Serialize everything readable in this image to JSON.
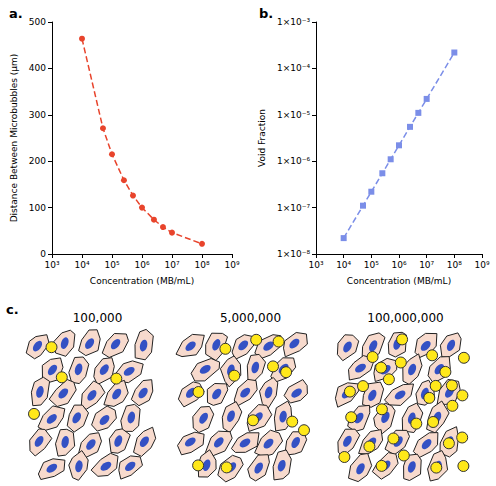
{
  "chart_data": [
    {
      "type": "line",
      "x_label": "Concentration (MB/mL)",
      "y_label": "Distance Between Microbubbles (µm)",
      "x": [
        10000,
        50000,
        100000,
        250000,
        500000,
        1000000,
        2500000,
        5000000,
        10000000,
        100000000
      ],
      "values": [
        464,
        271,
        215,
        159,
        126,
        100,
        74,
        58,
        46,
        22
      ],
      "xlim": [
        1000,
        1000000000
      ],
      "xticks": [
        {
          "value": 1000,
          "label": "10³"
        },
        {
          "value": 10000,
          "label": "10⁴"
        },
        {
          "value": 100000,
          "label": "10⁵"
        },
        {
          "value": 1000000,
          "label": "10⁶"
        },
        {
          "value": 10000000,
          "label": "10⁷"
        },
        {
          "value": 100000000,
          "label": "10⁸"
        },
        {
          "value": 1000000000,
          "label": "10⁹"
        }
      ],
      "ylim": [
        0,
        500
      ],
      "yticks": [
        0,
        100,
        200,
        300,
        400,
        500
      ],
      "log": "x",
      "grid": false,
      "color": "#e8442c",
      "marker": "circle",
      "line_style": "dashed"
    },
    {
      "type": "line",
      "x_label": "Concentration (MB/mL)",
      "y_label": "Void Fraction",
      "x": [
        10000,
        50000,
        100000,
        250000,
        500000,
        1000000,
        2500000,
        5000000,
        10000000,
        100000000
      ],
      "values": [
        2.2e-08,
        1.1e-07,
        2.2e-07,
        5.5e-07,
        1.1e-06,
        2.2e-06,
        5.5e-06,
        1.1e-05,
        2.2e-05,
        0.00022
      ],
      "xlim": [
        1000,
        1000000000
      ],
      "xticks": [
        {
          "value": 1000,
          "label": "10³"
        },
        {
          "value": 10000,
          "label": "10⁴"
        },
        {
          "value": 100000,
          "label": "10⁵"
        },
        {
          "value": 1000000,
          "label": "10⁶"
        },
        {
          "value": 10000000,
          "label": "10⁷"
        },
        {
          "value": 100000000,
          "label": "10⁸"
        },
        {
          "value": 1000000000,
          "label": "10⁹"
        }
      ],
      "ylim": [
        1e-08,
        0.001
      ],
      "yticks": [
        {
          "value": 1e-08,
          "label": "1×10⁻⁸"
        },
        {
          "value": 1e-07,
          "label": "1×10⁻⁷"
        },
        {
          "value": 1e-06,
          "label": "1×10⁻⁶"
        },
        {
          "value": 1e-05,
          "label": "1×10⁻⁵"
        },
        {
          "value": 0.0001,
          "label": "1×10⁻⁴"
        },
        {
          "value": 0.001,
          "label": "1×10⁻³"
        }
      ],
      "log": true,
      "grid": false,
      "color": "#7b8ee8",
      "marker": "square",
      "line_style": "dashed"
    }
  ],
  "panel_labels": [
    "a.",
    "b.",
    "c."
  ],
  "diagram": {
    "panels": [
      {
        "title": "100,000",
        "microbubbles": 4
      },
      {
        "title": "5,000,000",
        "microbubbles": 12
      },
      {
        "title": "100,000,000",
        "microbubbles": 28
      }
    ]
  }
}
